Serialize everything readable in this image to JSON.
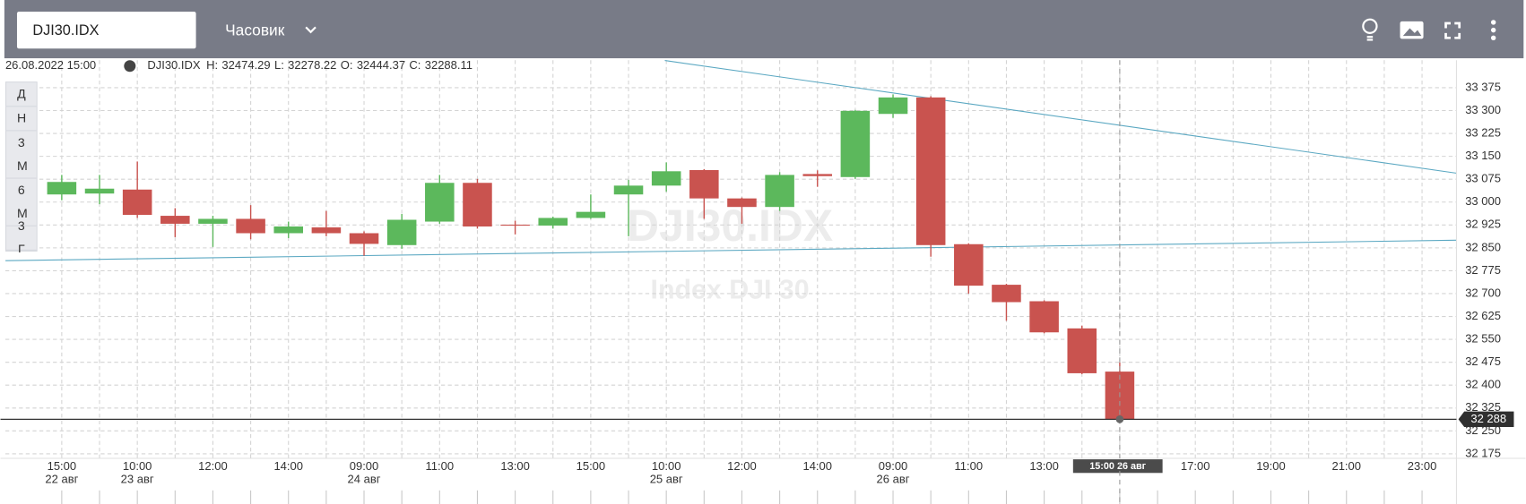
{
  "toolbar": {
    "symbol": "DJI30.IDX",
    "interval": "Часовик"
  },
  "range_buttons": [
    "Д",
    "Н",
    "3М",
    "6М",
    "3Г"
  ],
  "chart_data": {
    "type": "candlestick",
    "title": "DJI30.IDX",
    "subtitle": "Index DJI 30",
    "info": {
      "time": "26.08.2022 15:00",
      "symbol": "DJI30.IDX",
      "high": "H:",
      "low": "L:",
      "open": "O:",
      "close": "C:"
    },
    "categories": [
      "15:00",
      null,
      "10:00",
      null,
      "12:00",
      null,
      "14:00",
      null,
      "09:00",
      null,
      "11:00",
      null,
      "13:00",
      null,
      "15:00",
      null,
      "10:00",
      null,
      "12:00",
      null,
      "14:00",
      null,
      "09:00",
      null,
      "11:00",
      null,
      "13:00",
      null,
      "15:00 26 авг",
      null,
      "17:00",
      null,
      "19:00",
      null,
      "21:00",
      null,
      "23:00"
    ],
    "dates": [
      "22 авг",
      null,
      "23 авг",
      null,
      null,
      null,
      null,
      null,
      "24 авг",
      null,
      null,
      null,
      null,
      null,
      null,
      null,
      "25 авг",
      null,
      null,
      null,
      null,
      null,
      "26 авг",
      null,
      null,
      null,
      null,
      null,
      null,
      null,
      null,
      null,
      null,
      null,
      null,
      null,
      null
    ],
    "open": [
      33025,
      33028,
      33041,
      32955,
      32929,
      32945,
      32898,
      32917,
      32898,
      32859,
      32936,
      33063,
      32926,
      32923,
      32948,
      33025,
      33054,
      33105,
      33012,
      32984,
      33092,
      33082,
      33289,
      33343,
      32862,
      32729,
      32675,
      32586,
      32444.37,
      null,
      null,
      null,
      null,
      null,
      null,
      null,
      null
    ],
    "high": [
      33089,
      33089,
      33133,
      32980,
      32955,
      32990,
      32936,
      32971,
      32904,
      32961,
      33089,
      33076,
      32939,
      32952,
      33025,
      33073,
      33130,
      33108,
      33015,
      33098,
      33104,
      33302,
      33353,
      33347,
      32865,
      32732,
      32678,
      32595,
      32474.29,
      null,
      null,
      null,
      null,
      null,
      null,
      null,
      null
    ],
    "low": [
      33006,
      32993,
      32948,
      32885,
      32853,
      32878,
      32882,
      32888,
      32824,
      32847,
      32929,
      32913,
      32894,
      32913,
      32945,
      32888,
      33034,
      32945,
      32929,
      32971,
      33050,
      33076,
      33276,
      32821,
      32700,
      32611,
      32570,
      32436,
      32278.22,
      null,
      null,
      null,
      null,
      null,
      null,
      null,
      null
    ],
    "close": [
      33066,
      33044,
      32958,
      32929,
      32945,
      32898,
      32920,
      32898,
      32863,
      32942,
      33063,
      32920,
      32923,
      32948,
      32968,
      33054,
      33101,
      33012,
      32984,
      33089,
      33085,
      33299,
      33343,
      32859,
      32726,
      32672,
      32573,
      32439,
      32288.11,
      null,
      null,
      null,
      null,
      null,
      null,
      null,
      null
    ],
    "up_color": "#5cb85c",
    "down_color": "#c9534f",
    "ylim": [
      32160,
      33465
    ],
    "yticks": [
      {
        "value": 32175,
        "label": "32 175"
      },
      {
        "value": 32250,
        "label": "32 250"
      },
      {
        "value": 32325,
        "label": "32 325"
      },
      {
        "value": 32400,
        "label": "32 400"
      },
      {
        "value": 32475,
        "label": "32 475"
      },
      {
        "value": 32550,
        "label": "32 550"
      },
      {
        "value": 32625,
        "label": "32 625"
      },
      {
        "value": 32700,
        "label": "32 700"
      },
      {
        "value": 32775,
        "label": "32 775"
      },
      {
        "value": 32850,
        "label": "32 850"
      },
      {
        "value": 32925,
        "label": "32 925"
      },
      {
        "value": 33000,
        "label": "33 000"
      },
      {
        "value": 33075,
        "label": "33 075"
      },
      {
        "value": 33150,
        "label": "33 150"
      },
      {
        "value": 33225,
        "label": "33 225"
      },
      {
        "value": 33300,
        "label": "33 300"
      },
      {
        "value": 33375,
        "label": "33 375"
      }
    ],
    "grid": true,
    "crosshair": 28,
    "last_price": {
      "value": 32288.11,
      "label": "32 288"
    },
    "trendline_color": "#5ba8c2",
    "trendlines": [
      {
        "x": [
          15.96,
          36.9
        ],
        "y": [
          33464,
          33095
        ]
      },
      {
        "x": [
          -1.49,
          36.9
        ],
        "y": [
          32808,
          32875
        ]
      }
    ]
  }
}
